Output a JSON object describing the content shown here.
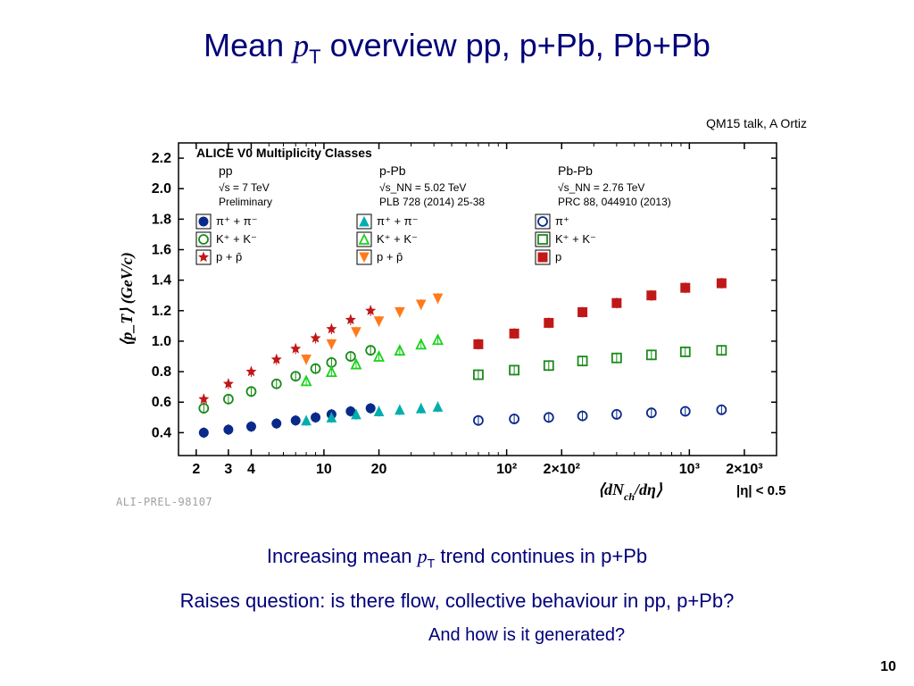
{
  "title_parts": {
    "a": "Mean ",
    "b": "p",
    "c": "T",
    "d": " overview pp, p+Pb, Pb+Pb"
  },
  "ref_text": "QM15 talk, A Ortiz",
  "caption1_parts": {
    "a": "Increasing mean ",
    "b": "p",
    "c": "T",
    "d": " trend continues in p+Pb"
  },
  "caption2": "Raises question: is there flow, collective behaviour in pp, p+Pb?",
  "caption3": "And how is it generated?",
  "pagenum": "10",
  "watermark": "ALI-PREL-98107",
  "chart": {
    "type": "scatter",
    "x_log": true,
    "xlim": [
      1.6,
      3000
    ],
    "ylim": [
      0.25,
      2.3
    ],
    "yticks": [
      0.4,
      0.6,
      0.8,
      1.0,
      1.2,
      1.4,
      1.6,
      1.8,
      2.0,
      2.2
    ],
    "xticks": [
      {
        "v": 2,
        "l": "2"
      },
      {
        "v": 3,
        "l": "3"
      },
      {
        "v": 4,
        "l": "4"
      },
      {
        "v": 10,
        "l": "10"
      },
      {
        "v": 20,
        "l": "20"
      },
      {
        "v": 100,
        "l": "10²"
      },
      {
        "v": 200,
        "l": "2×10²"
      },
      {
        "v": 1000,
        "l": "10³"
      },
      {
        "v": 2000,
        "l": "2×10³"
      }
    ],
    "ylabel": "⟨p_T⟩ (GeV/c)",
    "xlabel_parts": {
      "a": "⟨dN",
      "b": "ch",
      "c": "/dη⟩",
      "d": "|η| < 0.5"
    },
    "legend_header": "ALICE V0 Multiplicity Classes",
    "legend_cols": [
      {
        "title": "pp",
        "sub": "√s = 7 TeV",
        "sub2": "Preliminary"
      },
      {
        "title": "p-Pb",
        "sub": "√s_NN = 5.02 TeV",
        "sub2": "PLB 728 (2014) 25-38"
      },
      {
        "title": "Pb-Pb",
        "sub": "√s_NN = 2.76 TeV",
        "sub2": "PRC 88, 044910 (2013)"
      }
    ],
    "legend_rows": [
      {
        "label": "π⁺ + π⁻",
        "colors": [
          "#0a2a8a",
          "#00aeae",
          "#0a2a8a"
        ],
        "shapes": [
          "fcirc",
          "ftri",
          "ocirc"
        ]
      },
      {
        "label": "K⁺ + K⁻",
        "colors": [
          "#1b8a1b",
          "#1bd21b",
          "#1b8a1b"
        ],
        "shapes": [
          "ocirc",
          "otri",
          "osq"
        ]
      },
      {
        "label": "p + p̄",
        "colors": [
          "#c01818",
          "#ff7a1a",
          "#c01818"
        ],
        "pblabel": "p",
        "shapes": [
          "fstar",
          "dtri",
          "fsq"
        ],
        "pions_pb": "π⁺"
      }
    ],
    "colors": {
      "axis": "#000000",
      "text": "#000000",
      "pp_pi": "#0a2a8a",
      "pp_K": "#1b8a1b",
      "pp_p": "#c01818",
      "pPb_pi": "#00aeae",
      "pPb_K": "#1bd21b",
      "pPb_p": "#ff7a1a",
      "PbPb_pi": "#0a2a8a",
      "PbPb_K": "#1b8a1b",
      "PbPb_p": "#c01818"
    },
    "series": [
      {
        "k": "pp_pi",
        "m": "fcirc",
        "pts": [
          [
            2.2,
            0.4
          ],
          [
            3,
            0.42
          ],
          [
            4,
            0.44
          ],
          [
            5.5,
            0.46
          ],
          [
            7,
            0.48
          ],
          [
            9,
            0.5
          ],
          [
            11,
            0.52
          ],
          [
            14,
            0.54
          ],
          [
            18,
            0.56
          ]
        ]
      },
      {
        "k": "pp_K",
        "m": "ocirc",
        "pts": [
          [
            2.2,
            0.56
          ],
          [
            3,
            0.62
          ],
          [
            4,
            0.67
          ],
          [
            5.5,
            0.72
          ],
          [
            7,
            0.77
          ],
          [
            9,
            0.82
          ],
          [
            11,
            0.86
          ],
          [
            14,
            0.9
          ],
          [
            18,
            0.94
          ]
        ]
      },
      {
        "k": "pp_p",
        "m": "fstar",
        "pts": [
          [
            2.2,
            0.62
          ],
          [
            3,
            0.72
          ],
          [
            4,
            0.8
          ],
          [
            5.5,
            0.88
          ],
          [
            7,
            0.95
          ],
          [
            9,
            1.02
          ],
          [
            11,
            1.08
          ],
          [
            14,
            1.14
          ],
          [
            18,
            1.2
          ]
        ]
      },
      {
        "k": "pPb_pi",
        "m": "ftri",
        "pts": [
          [
            8,
            0.48
          ],
          [
            11,
            0.5
          ],
          [
            15,
            0.52
          ],
          [
            20,
            0.54
          ],
          [
            26,
            0.55
          ],
          [
            34,
            0.56
          ],
          [
            42,
            0.57
          ]
        ]
      },
      {
        "k": "pPb_K",
        "m": "otri",
        "pts": [
          [
            8,
            0.74
          ],
          [
            11,
            0.8
          ],
          [
            15,
            0.85
          ],
          [
            20,
            0.9
          ],
          [
            26,
            0.94
          ],
          [
            34,
            0.98
          ],
          [
            42,
            1.01
          ]
        ]
      },
      {
        "k": "pPb_p",
        "m": "dtri",
        "pts": [
          [
            8,
            0.88
          ],
          [
            11,
            0.98
          ],
          [
            15,
            1.06
          ],
          [
            20,
            1.13
          ],
          [
            26,
            1.19
          ],
          [
            34,
            1.24
          ],
          [
            42,
            1.28
          ]
        ]
      },
      {
        "k": "PbPb_pi",
        "m": "ocirc",
        "pts": [
          [
            70,
            0.48
          ],
          [
            110,
            0.49
          ],
          [
            170,
            0.5
          ],
          [
            260,
            0.51
          ],
          [
            400,
            0.52
          ],
          [
            620,
            0.53
          ],
          [
            950,
            0.54
          ],
          [
            1500,
            0.55
          ]
        ]
      },
      {
        "k": "PbPb_K",
        "m": "osq",
        "pts": [
          [
            70,
            0.78
          ],
          [
            110,
            0.81
          ],
          [
            170,
            0.84
          ],
          [
            260,
            0.87
          ],
          [
            400,
            0.89
          ],
          [
            620,
            0.91
          ],
          [
            950,
            0.93
          ],
          [
            1500,
            0.94
          ]
        ]
      },
      {
        "k": "PbPb_p",
        "m": "fsq",
        "pts": [
          [
            70,
            0.98
          ],
          [
            110,
            1.05
          ],
          [
            170,
            1.12
          ],
          [
            260,
            1.19
          ],
          [
            400,
            1.25
          ],
          [
            620,
            1.3
          ],
          [
            950,
            1.35
          ],
          [
            1500,
            1.38
          ]
        ]
      }
    ]
  }
}
